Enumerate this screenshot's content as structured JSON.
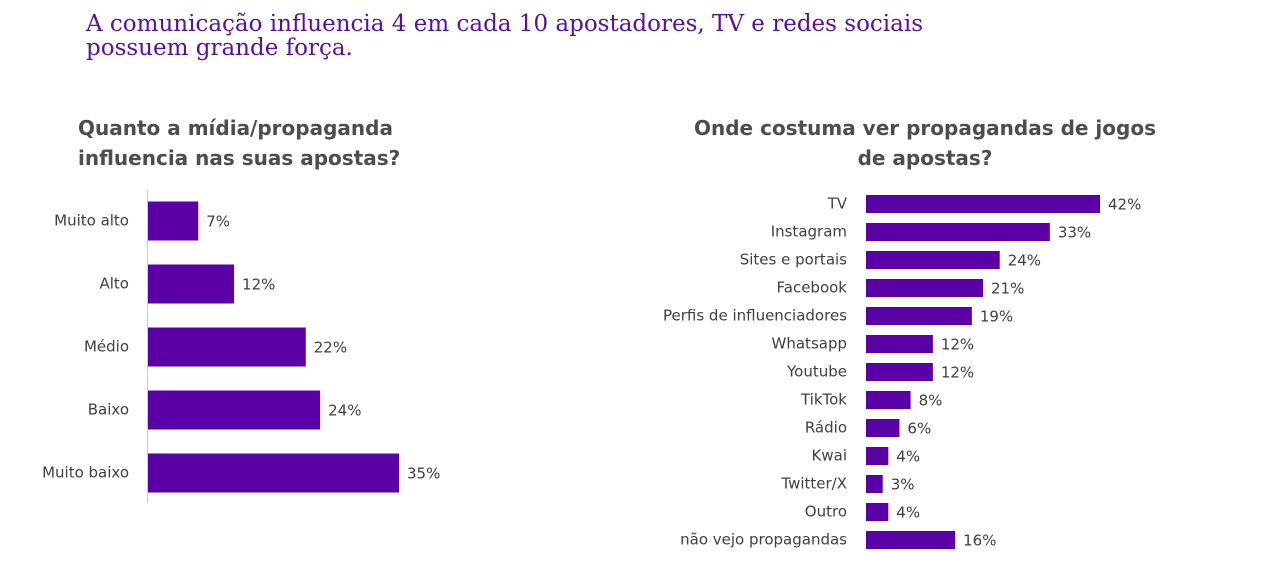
{
  "headline": "A comunicação influencia 4 em cada 10 apostadores, TV e redes sociais possuem grande força.",
  "colors": {
    "bar": "#5b00a6",
    "headline": "#5a0fa0",
    "axis": "#cccccc"
  },
  "chart_data": [
    {
      "type": "bar",
      "orientation": "horizontal",
      "title": "Quanto a mídia/propaganda influencia nas suas apostas?",
      "categories": [
        "Muito alto",
        "Alto",
        "Médio",
        "Baixo",
        "Muito baixo"
      ],
      "values": [
        7,
        12,
        22,
        24,
        35
      ],
      "value_labels": [
        "7%",
        "12%",
        "22%",
        "24%",
        "35%"
      ],
      "unit": "%",
      "xlim": [
        0,
        35
      ]
    },
    {
      "type": "bar",
      "orientation": "horizontal",
      "title": "Onde costuma ver propagandas de jogos de apostas?",
      "categories": [
        "TV",
        "Instagram",
        "Sites e portais",
        "Facebook",
        "Perfis de influenciadores",
        "Whatsapp",
        "Youtube",
        "TikTok",
        "Rádio",
        "Kwai",
        "Twitter/X",
        "Outro",
        "não vejo propagandas"
      ],
      "values": [
        42,
        33,
        24,
        21,
        19,
        12,
        12,
        8,
        6,
        4,
        3,
        4,
        16
      ],
      "value_labels": [
        "42%",
        "33%",
        "24%",
        "21%",
        "19%",
        "12%",
        "12%",
        "8%",
        "6%",
        "4%",
        "3%",
        "4%",
        "16%"
      ],
      "unit": "%",
      "xlim": [
        0,
        42
      ]
    }
  ]
}
